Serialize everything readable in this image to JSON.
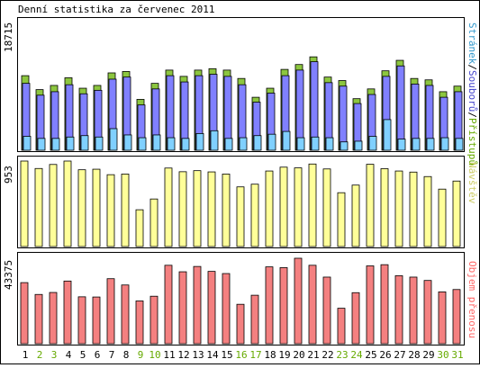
{
  "title": "Denní statistika za červenec 2011",
  "colors": {
    "hits": "#8cc63f",
    "files": "#8080ff",
    "pages": "#80d0ff",
    "visits": "#ffff99",
    "kbytes": "#f48080",
    "weekend": "#66aa00",
    "label_hits": "#66aa00",
    "label_files": "#4444cc",
    "label_pages": "#3399cc",
    "label_visits": "#cccc66",
    "label_kbytes": "#ff6666"
  },
  "chart_data": [
    {
      "type": "bar",
      "name": "hits-files-pages",
      "ymax_label": "18715",
      "ymax": 18715,
      "series_label": {
        "pages": "Stránek",
        "sep1": "/",
        "files": "Souborů",
        "sep2": "/",
        "hits": "Přístupů"
      },
      "categories": [
        "1",
        "2",
        "3",
        "4",
        "5",
        "6",
        "7",
        "8",
        "9",
        "10",
        "11",
        "12",
        "13",
        "14",
        "15",
        "16",
        "17",
        "18",
        "19",
        "20",
        "21",
        "22",
        "23",
        "24",
        "25",
        "26",
        "27",
        "28",
        "29",
        "30",
        "31"
      ],
      "series": [
        {
          "name": "Přístupů",
          "values": [
            10700,
            8700,
            9300,
            10400,
            8900,
            9300,
            11100,
            11300,
            7300,
            9600,
            11500,
            10600,
            11500,
            11700,
            11500,
            10300,
            7600,
            8900,
            11600,
            12300,
            13400,
            10500,
            10000,
            7400,
            8800,
            11400,
            12900,
            10300,
            10100,
            8400,
            9200
          ]
        },
        {
          "name": "Souborů",
          "values": [
            9600,
            7900,
            8400,
            9400,
            8100,
            8600,
            10200,
            10500,
            6500,
            8800,
            10700,
            9800,
            10700,
            10900,
            10600,
            9400,
            6900,
            8200,
            10700,
            11500,
            12700,
            9700,
            9200,
            6700,
            8000,
            10600,
            12100,
            9500,
            9300,
            7600,
            8400
          ]
        },
        {
          "name": "Stránek",
          "values": [
            2000,
            1700,
            1700,
            1900,
            2100,
            1900,
            3100,
            2200,
            1800,
            2200,
            1800,
            1700,
            2400,
            2800,
            1700,
            1800,
            2100,
            2300,
            2700,
            1800,
            1900,
            1800,
            1200,
            1300,
            2000,
            4400,
            1600,
            1700,
            1700,
            1800,
            1700
          ]
        }
      ]
    },
    {
      "type": "bar",
      "name": "visits",
      "ymax_label": "953",
      "ymax": 953,
      "series_label": "Návštěv",
      "categories": [
        "1",
        "2",
        "3",
        "4",
        "5",
        "6",
        "7",
        "8",
        "9",
        "10",
        "11",
        "12",
        "13",
        "14",
        "15",
        "16",
        "17",
        "18",
        "19",
        "20",
        "21",
        "22",
        "23",
        "24",
        "25",
        "26",
        "27",
        "28",
        "29",
        "30",
        "31"
      ],
      "series": [
        {
          "name": "Návštěv",
          "values": [
            953,
            870,
            915,
            953,
            856,
            862,
            801,
            808,
            410,
            530,
            875,
            834,
            846,
            832,
            808,
            665,
            695,
            842,
            885,
            877,
            920,
            865,
            600,
            685,
            917,
            868,
            842,
            830,
            780,
            640,
            730
          ]
        }
      ]
    },
    {
      "type": "bar",
      "name": "kbytes",
      "ymax_label": "43375",
      "ymax": 43375,
      "series_label": "Objem přenosu",
      "categories": [
        "1",
        "2",
        "3",
        "4",
        "5",
        "6",
        "7",
        "8",
        "9",
        "10",
        "11",
        "12",
        "13",
        "14",
        "15",
        "16",
        "17",
        "18",
        "19",
        "20",
        "21",
        "22",
        "23",
        "24",
        "25",
        "26",
        "27",
        "28",
        "29",
        "30",
        "31"
      ],
      "series": [
        {
          "name": "Objem přenosu",
          "values": [
            31000,
            25000,
            26000,
            31800,
            23800,
            23700,
            33000,
            29800,
            21700,
            24100,
            39800,
            36500,
            39200,
            36700,
            35600,
            20000,
            24600,
            39000,
            38600,
            43375,
            39800,
            33800,
            18000,
            25900,
            39500,
            40100,
            34500,
            33800,
            32100,
            26300,
            27500
          ]
        }
      ]
    }
  ],
  "day_labels": [
    {
      "text": "1",
      "weekend": false
    },
    {
      "text": "2",
      "weekend": true
    },
    {
      "text": "3",
      "weekend": true
    },
    {
      "text": "4",
      "weekend": false
    },
    {
      "text": "5",
      "weekend": false
    },
    {
      "text": "6",
      "weekend": false
    },
    {
      "text": "7",
      "weekend": false
    },
    {
      "text": "8",
      "weekend": false
    },
    {
      "text": "9",
      "weekend": true
    },
    {
      "text": "10",
      "weekend": true
    },
    {
      "text": "11",
      "weekend": false
    },
    {
      "text": "12",
      "weekend": false
    },
    {
      "text": "13",
      "weekend": false
    },
    {
      "text": "14",
      "weekend": false
    },
    {
      "text": "15",
      "weekend": false
    },
    {
      "text": "16",
      "weekend": true
    },
    {
      "text": "17",
      "weekend": true
    },
    {
      "text": "18",
      "weekend": false
    },
    {
      "text": "19",
      "weekend": false
    },
    {
      "text": "20",
      "weekend": false
    },
    {
      "text": "21",
      "weekend": false
    },
    {
      "text": "22",
      "weekend": false
    },
    {
      "text": "23",
      "weekend": true
    },
    {
      "text": "24",
      "weekend": true
    },
    {
      "text": "25",
      "weekend": false
    },
    {
      "text": "26",
      "weekend": false
    },
    {
      "text": "27",
      "weekend": false
    },
    {
      "text": "28",
      "weekend": false
    },
    {
      "text": "29",
      "weekend": false
    },
    {
      "text": "30",
      "weekend": true
    },
    {
      "text": "31",
      "weekend": true
    }
  ]
}
